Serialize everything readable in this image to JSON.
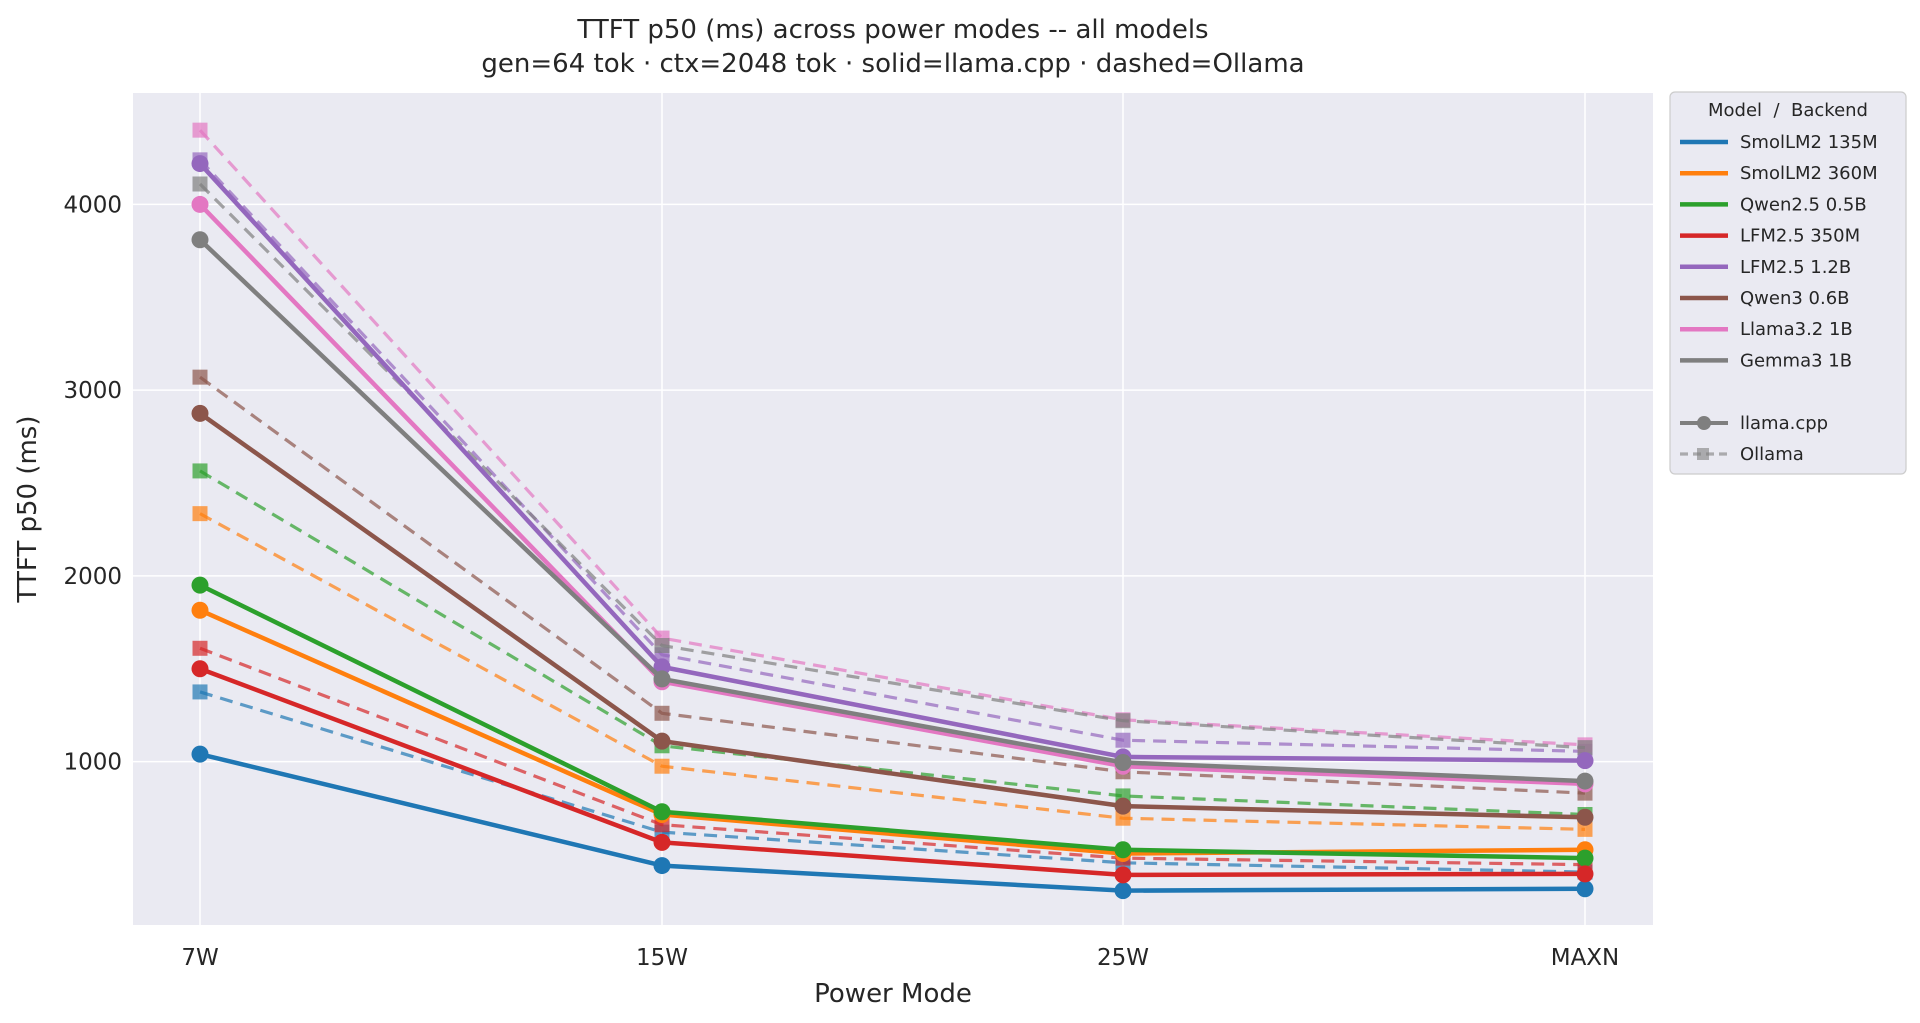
{
  "chart_data": {
    "type": "line",
    "title": "TTFT p50 (ms) across power modes -- all models",
    "subtitle": "gen=64 tok · ctx=2048 tok · solid=llama.cpp · dashed=Ollama",
    "xlabel": "Power Mode",
    "ylabel": "TTFT p50 (ms)",
    "categories": [
      "7W",
      "15W",
      "25W",
      "MAXN"
    ],
    "ylim": [
      120,
      4600
    ],
    "yticks": [
      1000,
      2000,
      3000,
      4000
    ],
    "grid": true,
    "legend_position": "outside-right",
    "legend_title": "Model  /  Backend",
    "backends": [
      {
        "name": "llama.cpp",
        "style": "solid",
        "marker": "circle"
      },
      {
        "name": "Ollama",
        "style": "dashed",
        "marker": "square"
      }
    ],
    "series": [
      {
        "model": "SmolLM2 135M",
        "color": "#1f77b4",
        "llama_cpp": [
          1040,
          440,
          305,
          315
        ],
        "ollama": [
          1375,
          620,
          455,
          405
        ]
      },
      {
        "model": "SmolLM2 360M",
        "color": "#ff7f0e",
        "llama_cpp": [
          1815,
          715,
          505,
          525
        ],
        "ollama": [
          2335,
          975,
          695,
          635
        ]
      },
      {
        "model": "Qwen2.5 0.5B",
        "color": "#2ca02c",
        "llama_cpp": [
          1950,
          730,
          525,
          480
        ],
        "ollama": [
          2565,
          1085,
          815,
          715
        ]
      },
      {
        "model": "LFM2.5 350M",
        "color": "#d62728",
        "llama_cpp": [
          1500,
          565,
          390,
          395
        ],
        "ollama": [
          1610,
          660,
          480,
          445
        ]
      },
      {
        "model": "LFM2.5 1.2B",
        "color": "#9467bd",
        "llama_cpp": [
          4220,
          1510,
          1025,
          1005
        ],
        "ollama": [
          4240,
          1575,
          1115,
          1055
        ]
      },
      {
        "model": "Qwen3 0.6B",
        "color": "#8c564b",
        "llama_cpp": [
          2875,
          1110,
          760,
          700
        ],
        "ollama": [
          3070,
          1260,
          945,
          830
        ]
      },
      {
        "model": "Llama3.2 1B",
        "color": "#e377c2",
        "llama_cpp": [
          4000,
          1430,
          975,
          880
        ],
        "ollama": [
          4400,
          1665,
          1225,
          1090
        ]
      },
      {
        "model": "Gemma3 1B",
        "color": "#7f7f7f",
        "llama_cpp": [
          3810,
          1445,
          995,
          895
        ],
        "ollama": [
          4110,
          1625,
          1220,
          1075
        ]
      }
    ]
  }
}
